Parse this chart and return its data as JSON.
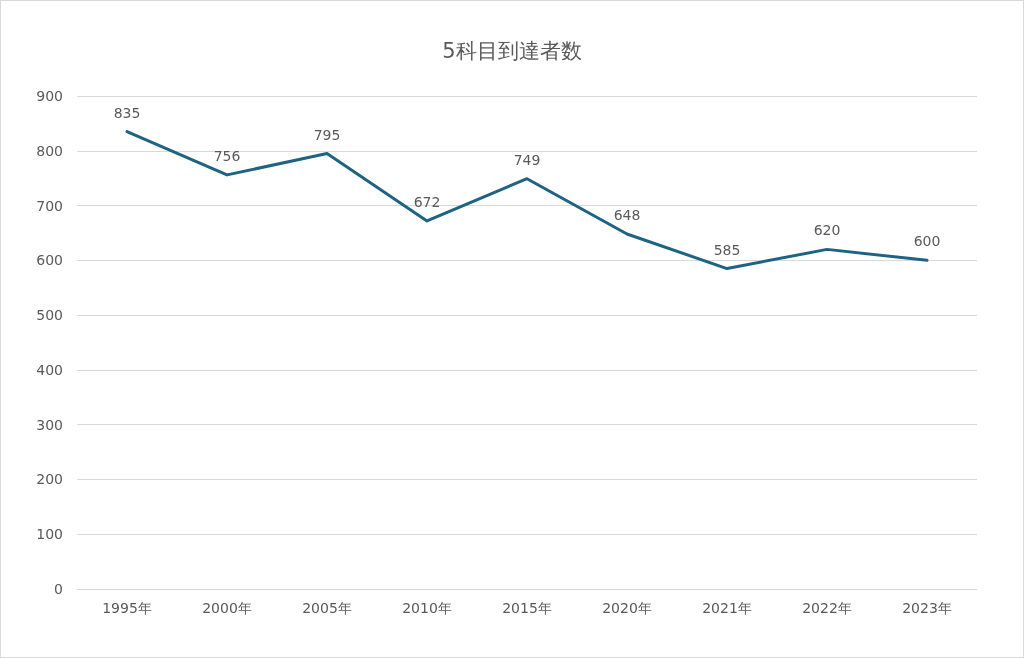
{
  "chart_data": {
    "type": "line",
    "title": "5科目到達者数",
    "categories": [
      "1995年",
      "2000年",
      "2005年",
      "2010年",
      "2015年",
      "2020年",
      "2021年",
      "2022年",
      "2023年"
    ],
    "series": [
      {
        "color": "#1f6384",
        "values": [
          835,
          756,
          795,
          672,
          749,
          648,
          585,
          620,
          600
        ]
      }
    ],
    "ylim": [
      0,
      900
    ],
    "yticks": [
      0,
      100,
      200,
      300,
      400,
      500,
      600,
      700,
      800,
      900
    ],
    "grid": "y",
    "marker": "none",
    "line_style": "solid",
    "data_labels": true
  }
}
